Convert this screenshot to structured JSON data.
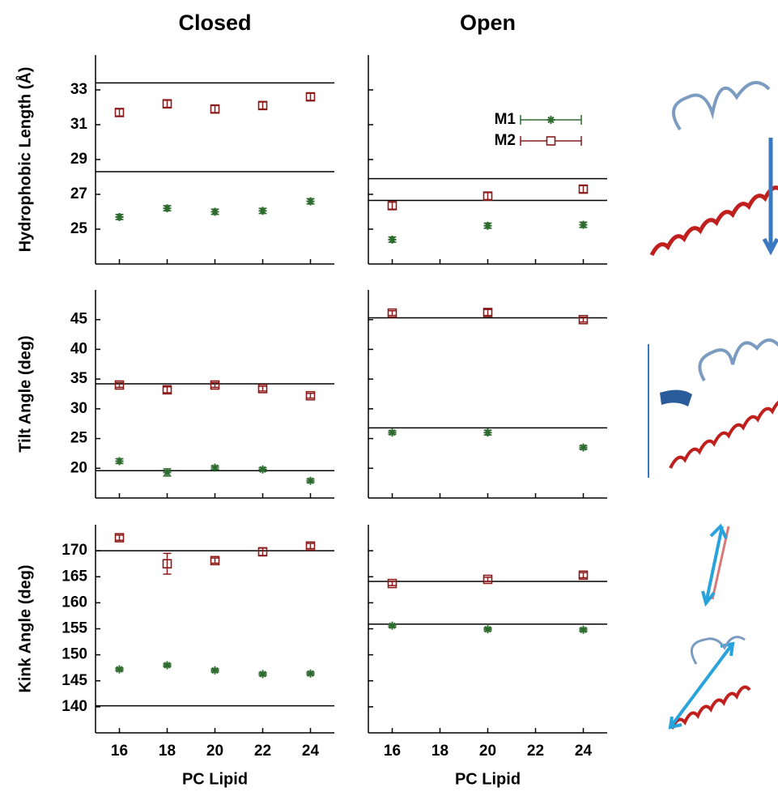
{
  "chart_data": [
    {
      "type": "scatter",
      "title": "Closed",
      "ylabel": "Hydrophobic Length (Å)",
      "x": [
        16,
        18,
        20,
        22,
        24
      ],
      "xlim": [
        15,
        25
      ],
      "ylim": [
        23,
        35
      ],
      "xticks": [
        16,
        18,
        20,
        22,
        24
      ],
      "yticks": [
        25,
        27,
        29,
        31,
        33
      ],
      "ytick_labels": true,
      "xtick_labels": false,
      "hlines": [
        33.4,
        28.3
      ],
      "series": [
        {
          "color": "#2e6b2e",
          "marker": "star",
          "values": [
            25.7,
            26.2,
            26.0,
            26.05,
            26.6
          ],
          "errors": [
            0.15,
            0.15,
            0.15,
            0.15,
            0.15
          ]
        },
        {
          "color": "#8b1a1a",
          "marker": "square",
          "values": [
            31.7,
            32.2,
            31.9,
            32.1,
            32.6
          ],
          "errors": [
            0.2,
            0.2,
            0.2,
            0.2,
            0.2
          ]
        }
      ]
    },
    {
      "type": "scatter",
      "title": "Open",
      "x": [
        16,
        20,
        24
      ],
      "xlim": [
        15,
        25
      ],
      "ylim": [
        23,
        35
      ],
      "xticks": [
        16,
        18,
        20,
        22,
        24
      ],
      "yticks": [
        25,
        27,
        29,
        31,
        33
      ],
      "ytick_labels": false,
      "xtick_labels": false,
      "hlines": [
        27.9,
        26.65
      ],
      "legend": "upper right",
      "series": [
        {
          "name": "M1",
          "color": "#2e6b2e",
          "marker": "star",
          "values": [
            24.4,
            25.2,
            25.25
          ],
          "errors": [
            0.15,
            0.15,
            0.15
          ]
        },
        {
          "name": "M2",
          "color": "#8b1a1a",
          "marker": "square",
          "values": [
            26.35,
            26.9,
            27.3
          ],
          "errors": [
            0.2,
            0.2,
            0.2
          ]
        }
      ]
    },
    {
      "type": "scatter",
      "ylabel": "Tilt Angle (deg)",
      "x": [
        16,
        18,
        20,
        22,
        24
      ],
      "xlim": [
        15,
        25
      ],
      "ylim": [
        15,
        50
      ],
      "xticks": [
        16,
        18,
        20,
        22,
        24
      ],
      "yticks": [
        20,
        25,
        30,
        35,
        40,
        45
      ],
      "ytick_labels": true,
      "xtick_labels": false,
      "hlines": [
        34.2,
        19.6
      ],
      "series": [
        {
          "color": "#2e6b2e",
          "marker": "star",
          "values": [
            21.2,
            19.3,
            20.1,
            19.8,
            17.9
          ],
          "errors": [
            0.4,
            0.6,
            0.3,
            0.3,
            0.3
          ]
        },
        {
          "color": "#8b1a1a",
          "marker": "square",
          "values": [
            34.0,
            33.2,
            34.0,
            33.4,
            32.2
          ],
          "errors": [
            0.4,
            0.5,
            0.4,
            0.4,
            0.4
          ]
        }
      ]
    },
    {
      "type": "scatter",
      "x": [
        16,
        20,
        24
      ],
      "xlim": [
        15,
        25
      ],
      "ylim": [
        15,
        50
      ],
      "xticks": [
        16,
        18,
        20,
        22,
        24
      ],
      "yticks": [
        20,
        25,
        30,
        35,
        40,
        45
      ],
      "ytick_labels": false,
      "xtick_labels": false,
      "hlines": [
        45.3,
        26.8
      ],
      "series": [
        {
          "color": "#2e6b2e",
          "marker": "star",
          "values": [
            26.0,
            26.0,
            23.5
          ],
          "errors": [
            0.3,
            0.4,
            0.3
          ]
        },
        {
          "color": "#8b1a1a",
          "marker": "square",
          "values": [
            46.1,
            46.2,
            45.0
          ],
          "errors": [
            0.4,
            0.5,
            0.4
          ]
        }
      ]
    },
    {
      "type": "scatter",
      "ylabel": "Kink Angle (deg)",
      "xlabel": "PC Lipid",
      "x": [
        16,
        18,
        20,
        22,
        24
      ],
      "xlim": [
        15,
        25
      ],
      "ylim": [
        135,
        175
      ],
      "xticks": [
        16,
        18,
        20,
        22,
        24
      ],
      "yticks": [
        140,
        145,
        150,
        155,
        160,
        165,
        170
      ],
      "ytick_labels": true,
      "xtick_labels": true,
      "hlines": [
        170.0,
        140.2
      ],
      "series": [
        {
          "color": "#2e6b2e",
          "marker": "star",
          "values": [
            147.2,
            148.0,
            147.0,
            146.3,
            146.4
          ],
          "errors": [
            0.3,
            0.3,
            0.3,
            0.3,
            0.3
          ]
        },
        {
          "color": "#8b1a1a",
          "marker": "square",
          "values": [
            172.5,
            167.5,
            168.1,
            169.8,
            170.9
          ],
          "errors": [
            0.5,
            2.0,
            0.5,
            0.7,
            0.5
          ]
        }
      ]
    },
    {
      "type": "scatter",
      "xlabel": "PC Lipid",
      "x": [
        16,
        20,
        24
      ],
      "xlim": [
        15,
        25
      ],
      "ylim": [
        135,
        175
      ],
      "xticks": [
        16,
        18,
        20,
        22,
        24
      ],
      "yticks": [
        140,
        145,
        150,
        155,
        160,
        165,
        170
      ],
      "ytick_labels": false,
      "xtick_labels": true,
      "hlines": [
        164.1,
        155.9
      ],
      "series": [
        {
          "color": "#2e6b2e",
          "marker": "star",
          "values": [
            155.6,
            154.9,
            154.8
          ],
          "errors": [
            0.3,
            0.3,
            0.3
          ]
        },
        {
          "color": "#8b1a1a",
          "marker": "square",
          "values": [
            163.7,
            164.5,
            165.3
          ],
          "errors": [
            0.4,
            0.4,
            0.5
          ]
        }
      ]
    }
  ]
}
